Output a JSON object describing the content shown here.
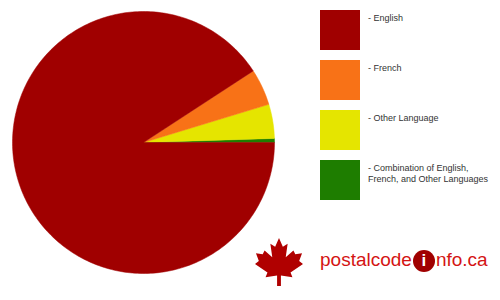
{
  "chart_data": {
    "type": "pie",
    "categories": [
      "- English",
      "- French",
      "- Other Language",
      "- Combination of English, French, and Other Languages"
    ],
    "values": [
      90.8,
      4.5,
      4.2,
      0.5
    ],
    "colors": [
      "#a00000",
      "#f87217",
      "#e5e500",
      "#1e7d00"
    ],
    "legend": "right",
    "annotations": [
      "postalcode",
      "i",
      "nfo.ca"
    ]
  }
}
